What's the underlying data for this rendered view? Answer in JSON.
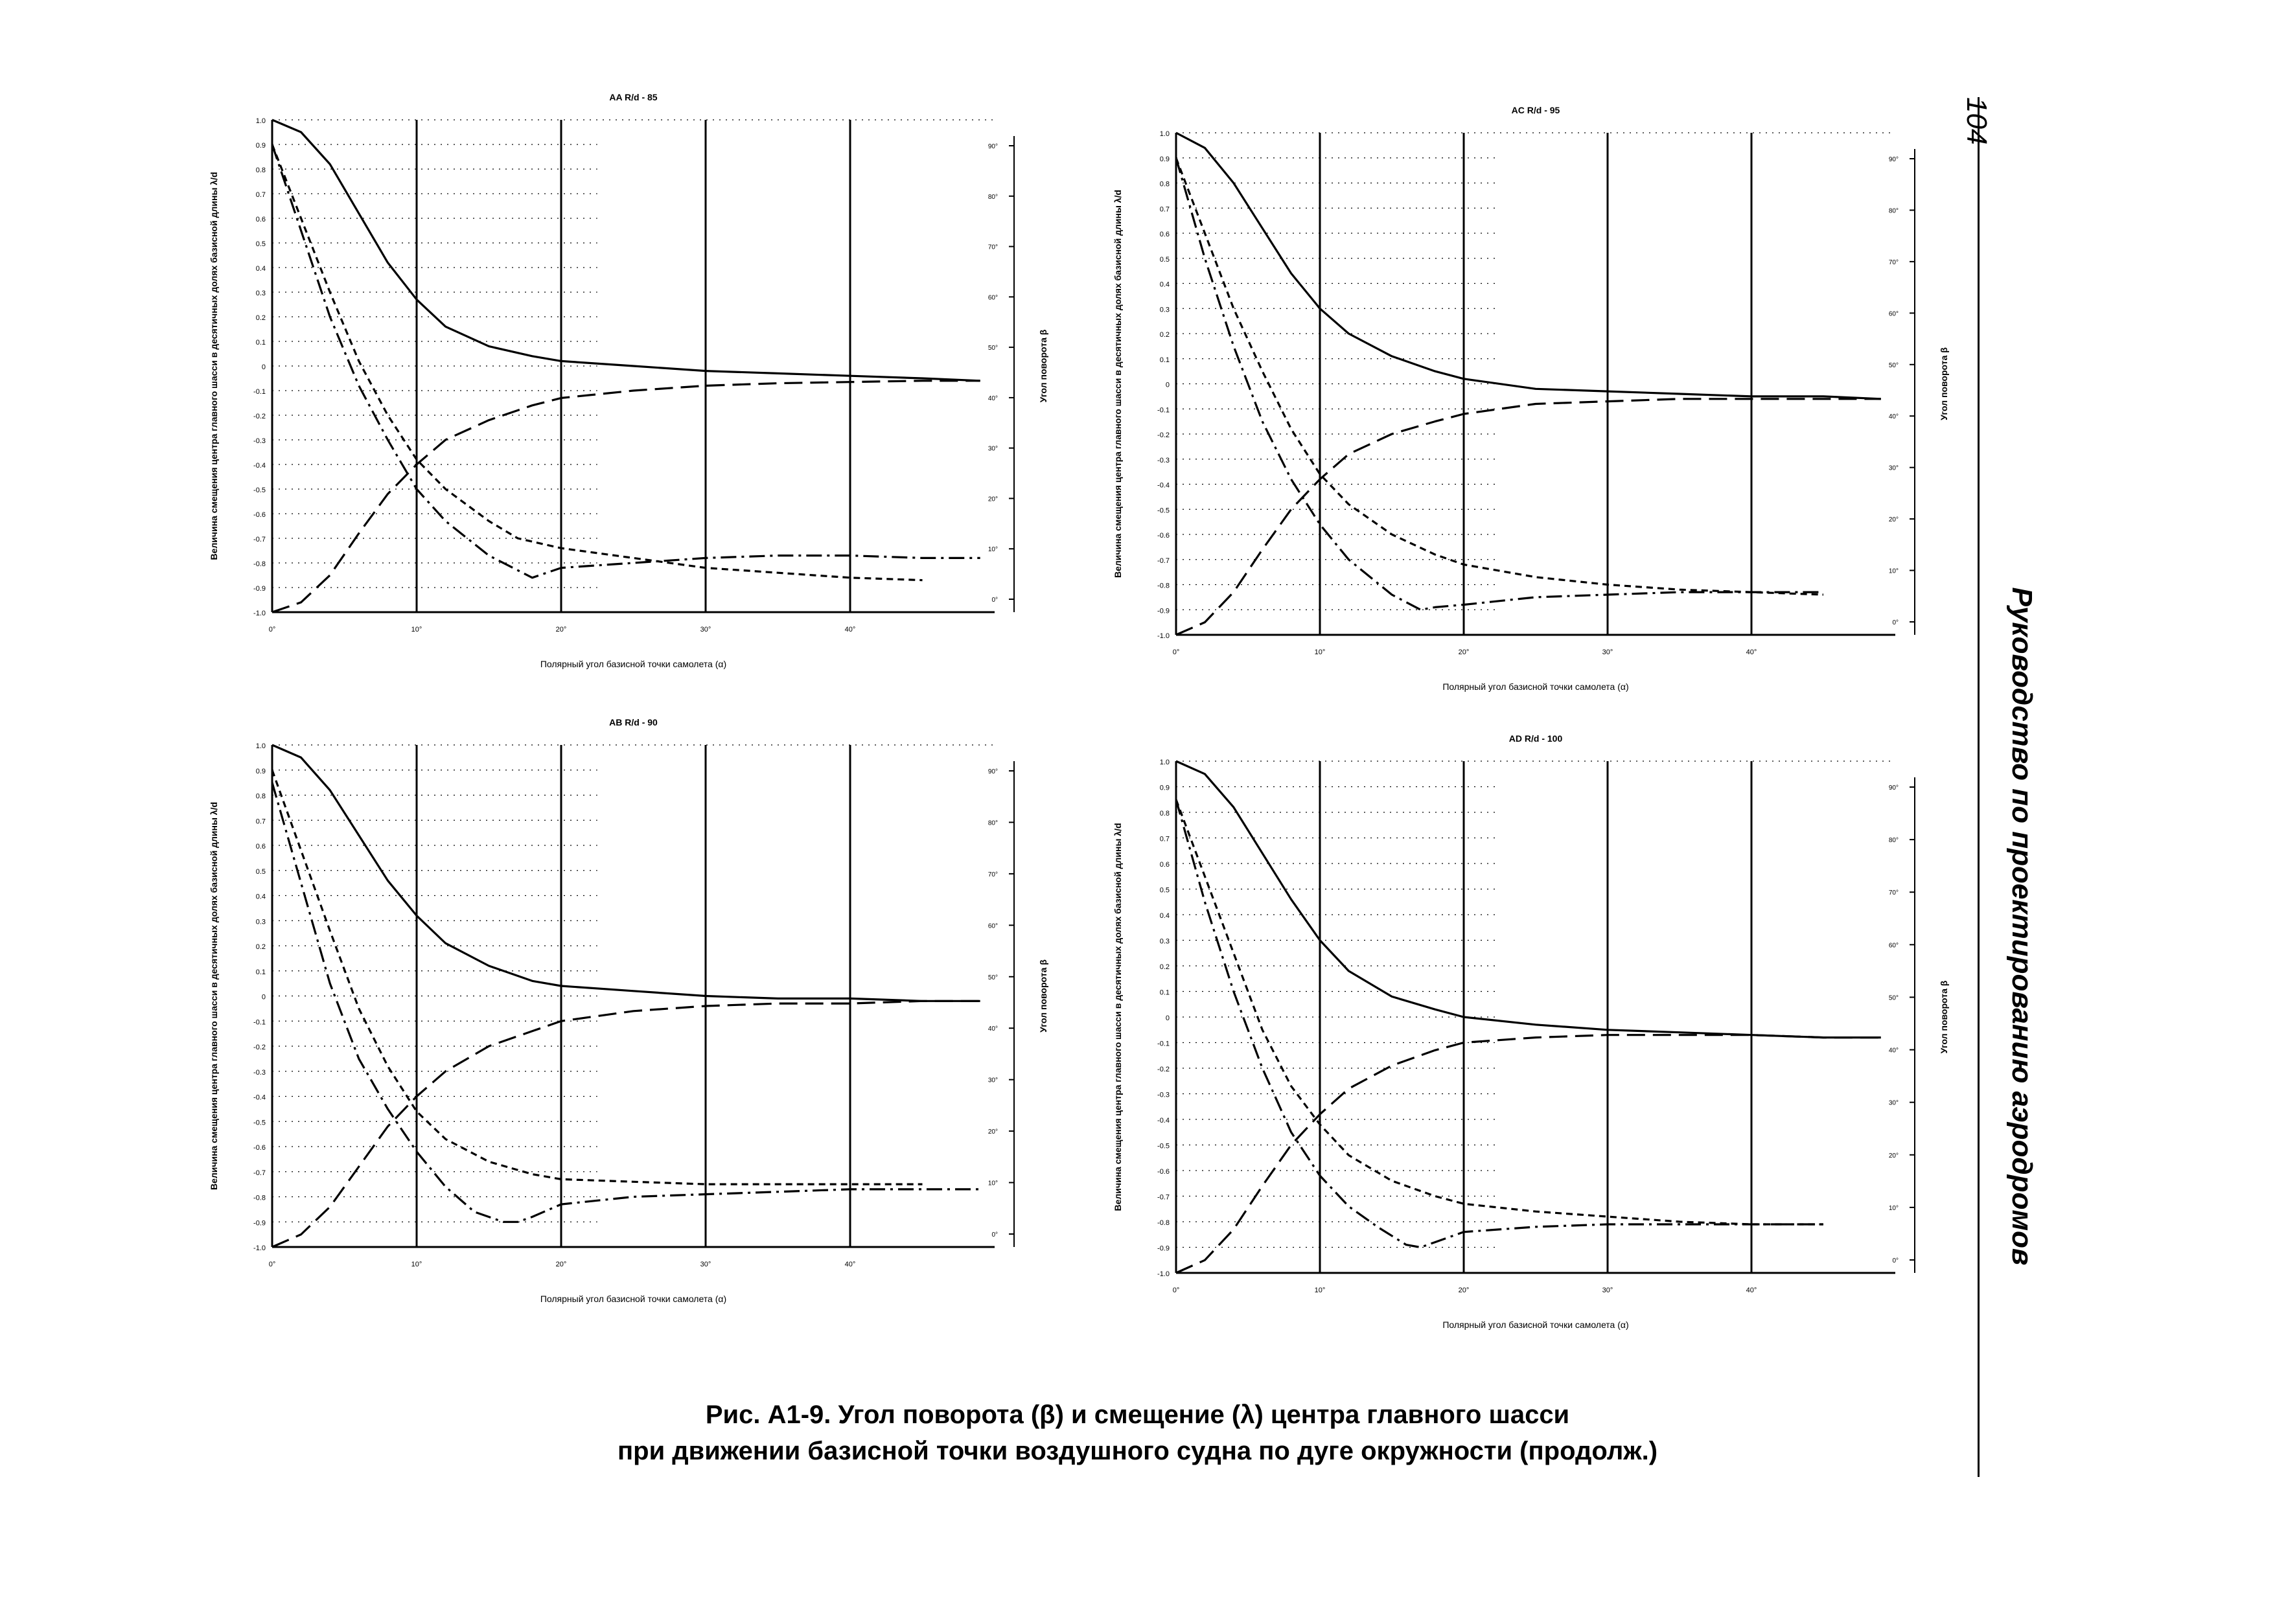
{
  "page": {
    "number": "104",
    "running_title": "Руководство по проектированию аэродромов",
    "caption_line1": "Рис. А1-9.    Угол поворота (β) и смещение (λ) центра главного шасси",
    "caption_line2": "при движении базисной точки воздушного судна по дуге окружности (продолж.)"
  },
  "chart_data": [
    {
      "type": "line",
      "title": "AA  R/d - 85",
      "xlabel": "Полярный угол базисной точки самолета (α)",
      "ylabel": "Величина смещения центра главного шасси в десятичных долях базисной длины λ/d",
      "y2label": "Угол поворота β",
      "xlim": [
        0,
        50
      ],
      "ylim": [
        -1.0,
        1.0
      ],
      "x_ticks": [
        "0°",
        "10°",
        "20°",
        "30°",
        "40°"
      ],
      "y_ticks": [
        "1.0",
        "0.9",
        "0.8",
        "0.7",
        "0.6",
        "0.5",
        "0.4",
        "0.3",
        "0.2",
        "0.1",
        "0",
        "-0.1",
        "-0.2",
        "-0.3",
        "-0.4",
        "-0.5",
        "-0.6",
        "-0.7",
        "-0.8",
        "-0.9",
        "-1.0"
      ],
      "y2_ticks": [
        "90°",
        "80°",
        "70°",
        "60°",
        "50°",
        "40°",
        "30°",
        "20°",
        "10°",
        "0°"
      ],
      "vlines": [
        10,
        20,
        30,
        40
      ],
      "series": [
        {
          "style": "solid",
          "x": [
            0,
            2,
            4,
            6,
            8,
            10,
            12,
            15,
            18,
            20,
            25,
            30,
            35,
            40,
            45,
            49
          ],
          "y": [
            1.0,
            0.95,
            0.82,
            0.62,
            0.42,
            0.27,
            0.16,
            0.08,
            0.04,
            0.02,
            0.0,
            -0.02,
            -0.03,
            -0.04,
            -0.05,
            -0.06
          ]
        },
        {
          "style": "longdash",
          "x": [
            0,
            2,
            4,
            6,
            8,
            10,
            12,
            15,
            18,
            20,
            25,
            30,
            35,
            40,
            45,
            49
          ],
          "y": [
            -1.0,
            -0.96,
            -0.85,
            -0.68,
            -0.52,
            -0.4,
            -0.3,
            -0.22,
            -0.16,
            -0.13,
            -0.1,
            -0.08,
            -0.07,
            -0.065,
            -0.06,
            -0.06
          ]
        },
        {
          "style": "shortdash",
          "x": [
            0,
            2,
            4,
            6,
            8,
            10,
            12,
            15,
            17,
            20,
            25,
            30,
            35,
            40,
            45
          ],
          "y": [
            0.9,
            0.6,
            0.3,
            0.02,
            -0.2,
            -0.38,
            -0.5,
            -0.63,
            -0.7,
            -0.74,
            -0.78,
            -0.82,
            -0.84,
            -0.86,
            -0.87
          ]
        },
        {
          "style": "dashdot",
          "x": [
            0,
            2,
            4,
            6,
            8,
            10,
            12,
            15,
            18,
            20,
            25,
            30,
            35,
            40,
            45,
            49
          ],
          "y": [
            0.9,
            0.55,
            0.2,
            -0.08,
            -0.3,
            -0.5,
            -0.63,
            -0.77,
            -0.86,
            -0.82,
            -0.8,
            -0.78,
            -0.77,
            -0.77,
            -0.78,
            -0.78
          ]
        }
      ]
    },
    {
      "type": "line",
      "title": "AC  R/d - 95",
      "xlabel": "Полярный угол базисной точки самолета (α)",
      "ylabel": "Величина смещения центра главного шасси в десятичных долях базисной длины λ/d",
      "y2label": "Угол поворота β",
      "xlim": [
        0,
        50
      ],
      "ylim": [
        -1.0,
        1.0
      ],
      "x_ticks": [
        "0°",
        "10°",
        "20°",
        "30°",
        "40°"
      ],
      "y_ticks": [
        "1.0",
        "0.9",
        "0.8",
        "0.7",
        "0.6",
        "0.5",
        "0.4",
        "0.3",
        "0.2",
        "0.1",
        "0",
        "-0.1",
        "-0.2",
        "-0.3",
        "-0.4",
        "-0.5",
        "-0.6",
        "-0.7",
        "-0.8",
        "-0.9",
        "-1.0"
      ],
      "y2_ticks": [
        "90°",
        "80°",
        "70°",
        "60°",
        "50°",
        "40°",
        "30°",
        "20°",
        "10°",
        "0°"
      ],
      "vlines": [
        10,
        20,
        30,
        40
      ],
      "series": [
        {
          "style": "solid",
          "x": [
            0,
            2,
            4,
            6,
            8,
            10,
            12,
            15,
            18,
            20,
            25,
            30,
            35,
            40,
            45,
            49
          ],
          "y": [
            1.0,
            0.94,
            0.8,
            0.62,
            0.44,
            0.3,
            0.2,
            0.11,
            0.05,
            0.02,
            -0.02,
            -0.03,
            -0.04,
            -0.05,
            -0.05,
            -0.06
          ]
        },
        {
          "style": "longdash",
          "x": [
            0,
            2,
            4,
            6,
            8,
            10,
            12,
            15,
            18,
            20,
            25,
            30,
            35,
            40,
            45,
            49
          ],
          "y": [
            -1.0,
            -0.95,
            -0.83,
            -0.66,
            -0.5,
            -0.38,
            -0.28,
            -0.2,
            -0.15,
            -0.12,
            -0.08,
            -0.07,
            -0.06,
            -0.06,
            -0.06,
            -0.06
          ]
        },
        {
          "style": "shortdash",
          "x": [
            0,
            2,
            4,
            6,
            8,
            10,
            12,
            15,
            18,
            20,
            25,
            30,
            35,
            40,
            45
          ],
          "y": [
            0.9,
            0.6,
            0.3,
            0.05,
            -0.18,
            -0.36,
            -0.48,
            -0.6,
            -0.68,
            -0.72,
            -0.77,
            -0.8,
            -0.82,
            -0.83,
            -0.84
          ]
        },
        {
          "style": "dashdot",
          "x": [
            0,
            2,
            4,
            6,
            8,
            10,
            12,
            15,
            17,
            18,
            20,
            25,
            30,
            35,
            40,
            45
          ],
          "y": [
            0.9,
            0.5,
            0.15,
            -0.15,
            -0.38,
            -0.56,
            -0.7,
            -0.84,
            -0.9,
            -0.89,
            -0.88,
            -0.85,
            -0.84,
            -0.83,
            -0.83,
            -0.83
          ]
        }
      ]
    },
    {
      "type": "line",
      "title": "AB  R/d - 90",
      "xlabel": "Полярный угол базисной точки самолета (α)",
      "ylabel": "Величина смещения центра главного шасси в десятичных долях базисной длины λ/d",
      "y2label": "Угол поворота β",
      "xlim": [
        0,
        50
      ],
      "ylim": [
        -1.0,
        1.0
      ],
      "x_ticks": [
        "0°",
        "10°",
        "20°",
        "30°",
        "40°"
      ],
      "y_ticks": [
        "1.0",
        "0.9",
        "0.8",
        "0.7",
        "0.6",
        "0.5",
        "0.4",
        "0.3",
        "0.2",
        "0.1",
        "0",
        "-0.1",
        "-0.2",
        "-0.3",
        "-0.4",
        "-0.5",
        "-0.6",
        "-0.7",
        "-0.8",
        "-0.9",
        "-1.0"
      ],
      "y2_ticks": [
        "90°",
        "80°",
        "70°",
        "60°",
        "50°",
        "40°",
        "30°",
        "20°",
        "10°",
        "0°"
      ],
      "vlines": [
        10,
        20,
        30,
        40
      ],
      "series": [
        {
          "style": "solid",
          "x": [
            0,
            2,
            4,
            6,
            8,
            10,
            12,
            15,
            18,
            20,
            25,
            30,
            35,
            40,
            45,
            49
          ],
          "y": [
            1.0,
            0.95,
            0.82,
            0.64,
            0.46,
            0.32,
            0.21,
            0.12,
            0.06,
            0.04,
            0.02,
            0.0,
            -0.01,
            -0.01,
            -0.02,
            -0.02
          ]
        },
        {
          "style": "longdash",
          "x": [
            0,
            2,
            4,
            6,
            8,
            10,
            12,
            15,
            18,
            20,
            25,
            30,
            35,
            40,
            45,
            49
          ],
          "y": [
            -1.0,
            -0.95,
            -0.84,
            -0.68,
            -0.52,
            -0.4,
            -0.3,
            -0.2,
            -0.14,
            -0.1,
            -0.06,
            -0.04,
            -0.03,
            -0.03,
            -0.02,
            -0.02
          ]
        },
        {
          "style": "shortdash",
          "x": [
            0,
            2,
            4,
            6,
            8,
            10,
            12,
            15,
            18,
            20,
            25,
            30,
            35,
            40,
            45
          ],
          "y": [
            0.9,
            0.58,
            0.26,
            -0.05,
            -0.28,
            -0.46,
            -0.57,
            -0.66,
            -0.71,
            -0.73,
            -0.74,
            -0.75,
            -0.75,
            -0.75,
            -0.75
          ]
        },
        {
          "style": "dashdot",
          "x": [
            0,
            2,
            4,
            6,
            8,
            10,
            12,
            14,
            16,
            17,
            18,
            20,
            25,
            30,
            35,
            40,
            45,
            49
          ],
          "y": [
            0.85,
            0.45,
            0.05,
            -0.25,
            -0.45,
            -0.62,
            -0.76,
            -0.86,
            -0.9,
            -0.9,
            -0.88,
            -0.83,
            -0.8,
            -0.79,
            -0.78,
            -0.77,
            -0.77,
            -0.77
          ]
        }
      ]
    },
    {
      "type": "line",
      "title": "AD  R/d - 100",
      "xlabel": "Полярный угол базисной точки самолета (α)",
      "ylabel": "Величина смещения центра главного шасси в десятичных долях базисной длины λ/d",
      "y2label": "Угол поворота β",
      "xlim": [
        0,
        50
      ],
      "ylim": [
        -1.0,
        1.0
      ],
      "x_ticks": [
        "0°",
        "10°",
        "20°",
        "30°",
        "40°"
      ],
      "y_ticks": [
        "1.0",
        "0.9",
        "0.8",
        "0.7",
        "0.6",
        "0.5",
        "0.4",
        "0.3",
        "0.2",
        "0.1",
        "0",
        "-0.1",
        "-0.2",
        "-0.3",
        "-0.4",
        "-0.5",
        "-0.6",
        "-0.7",
        "-0.8",
        "-0.9",
        "-1.0"
      ],
      "y2_ticks": [
        "90°",
        "80°",
        "70°",
        "60°",
        "50°",
        "40°",
        "30°",
        "20°",
        "10°",
        "0°"
      ],
      "vlines": [
        10,
        20,
        30,
        40
      ],
      "series": [
        {
          "style": "solid",
          "x": [
            0,
            2,
            4,
            6,
            8,
            10,
            12,
            15,
            18,
            20,
            25,
            30,
            35,
            40,
            45,
            49
          ],
          "y": [
            1.0,
            0.95,
            0.82,
            0.64,
            0.46,
            0.3,
            0.18,
            0.08,
            0.03,
            0.0,
            -0.03,
            -0.05,
            -0.06,
            -0.07,
            -0.08,
            -0.08
          ]
        },
        {
          "style": "longdash",
          "x": [
            0,
            2,
            4,
            6,
            8,
            10,
            12,
            15,
            18,
            20,
            25,
            30,
            35,
            40,
            45,
            49
          ],
          "y": [
            -1.0,
            -0.95,
            -0.83,
            -0.66,
            -0.5,
            -0.38,
            -0.28,
            -0.19,
            -0.13,
            -0.1,
            -0.08,
            -0.07,
            -0.07,
            -0.07,
            -0.08,
            -0.08
          ]
        },
        {
          "style": "shortdash",
          "x": [
            0,
            2,
            4,
            6,
            8,
            10,
            12,
            15,
            18,
            20,
            25,
            30,
            35,
            40,
            45
          ],
          "y": [
            0.85,
            0.55,
            0.25,
            -0.05,
            -0.27,
            -0.42,
            -0.54,
            -0.64,
            -0.7,
            -0.73,
            -0.76,
            -0.78,
            -0.8,
            -0.81,
            -0.81
          ]
        },
        {
          "style": "dashdot",
          "x": [
            0,
            2,
            4,
            6,
            8,
            10,
            12,
            14,
            16,
            17,
            18,
            20,
            25,
            30,
            35,
            40,
            45
          ],
          "y": [
            0.85,
            0.45,
            0.1,
            -0.2,
            -0.45,
            -0.62,
            -0.74,
            -0.82,
            -0.89,
            -0.9,
            -0.88,
            -0.84,
            -0.82,
            -0.81,
            -0.81,
            -0.81,
            -0.81
          ]
        }
      ]
    }
  ]
}
